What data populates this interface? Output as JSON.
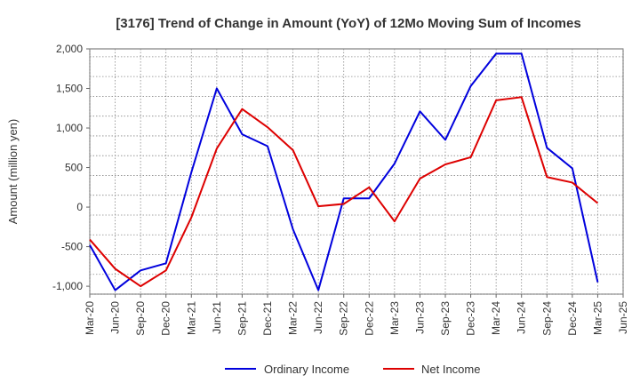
{
  "chart_data": {
    "type": "line",
    "title": "[3176]  Trend of Change in Amount (YoY) of 12Mo Moving Sum of Incomes",
    "xlabel": "",
    "ylabel": "Amount (million yen)",
    "ylim": [
      -1100,
      2000
    ],
    "yticks": [
      -1000,
      -500,
      0,
      500,
      1000,
      1500,
      2000
    ],
    "ytick_labels": [
      "-1,000",
      "-500",
      "0",
      "500",
      "1,000",
      "1,500",
      "2,000"
    ],
    "categories": [
      "Mar-20",
      "Jun-20",
      "Sep-20",
      "Dec-20",
      "Mar-21",
      "Jun-21",
      "Sep-21",
      "Dec-21",
      "Mar-22",
      "Jun-22",
      "Sep-22",
      "Dec-22",
      "Mar-23",
      "Jun-23",
      "Sep-23",
      "Dec-23",
      "Mar-24",
      "Jun-24",
      "Sep-24",
      "Dec-24",
      "Mar-25",
      "Jun-25"
    ],
    "grid": true,
    "legend_position": "bottom",
    "series": [
      {
        "name": "Ordinary Income",
        "color": "#0000dd",
        "values": [
          -480,
          -1050,
          -800,
          -710,
          440,
          1500,
          920,
          770,
          -280,
          -1050,
          110,
          110,
          550,
          1210,
          850,
          1530,
          1940,
          1940,
          750,
          490,
          -950,
          null
        ]
      },
      {
        "name": "Net Income",
        "color": "#dd0000",
        "values": [
          -410,
          -780,
          -1000,
          -800,
          -130,
          740,
          1240,
          1010,
          720,
          10,
          40,
          250,
          -180,
          360,
          540,
          630,
          1350,
          1390,
          380,
          310,
          50,
          null
        ]
      }
    ]
  }
}
